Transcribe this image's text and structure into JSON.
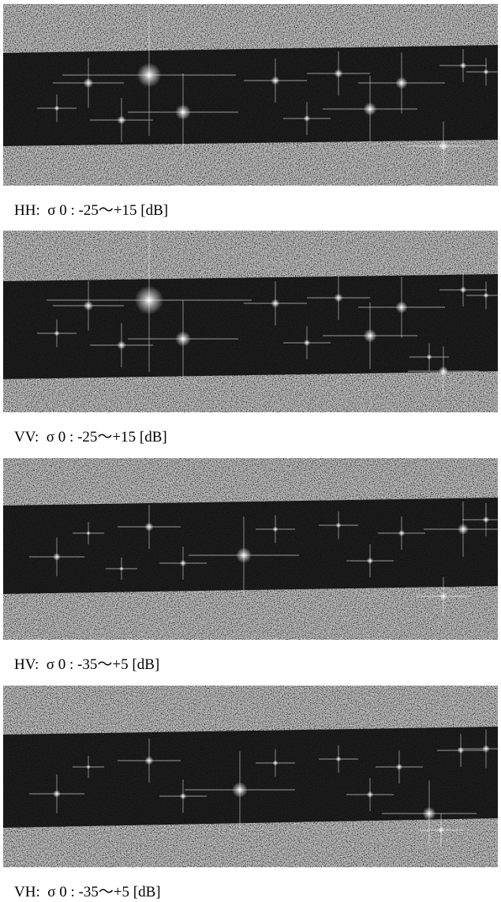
{
  "panels": [
    {
      "caption": "HH:  σ 0 : -25〜+15 [dB]"
    },
    {
      "caption": "VV:  σ 0 : -25〜+15 [dB]"
    },
    {
      "caption": "HV:  σ 0 : -35〜+5 [dB]"
    },
    {
      "caption": "VH:  σ 0 : -35〜+5 [dB]"
    }
  ]
}
